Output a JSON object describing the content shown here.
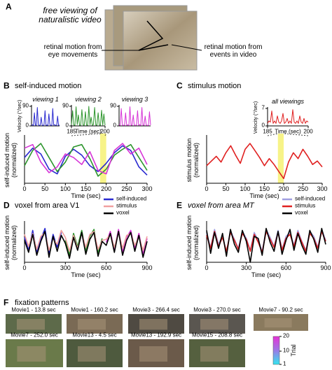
{
  "panels": {
    "A": {
      "letter": "A",
      "title": "free viewing of naturalistic video",
      "left_label": "retinal motion from eye movements",
      "right_label": "retinal motion from events in video"
    },
    "B": {
      "letter": "B",
      "title": "self-induced motion"
    },
    "C": {
      "letter": "C",
      "title": "stimulus motion"
    },
    "D": {
      "letter": "D",
      "title": "voxel from area V1"
    },
    "E": {
      "letter": "E",
      "title": "voxel from area MT"
    },
    "F": {
      "letter": "F",
      "title": "fixation patterns",
      "thumbnails": [
        "Movie1 - 13.8 sec",
        "Movie1 - 160.2 sec",
        "Movie3 - 266.4 sec",
        "Movie3 - 270.0 sec",
        "Movie7 - 90.2 sec",
        "Movie7 - 252.0 sec",
        "Movie13 - 4.5 sec",
        "Movie13 - 192.9 sec",
        "Movie15 - 208.8 sec"
      ],
      "colorbar": {
        "label": "Trial",
        "lim": [
          1,
          20
        ],
        "ticks": [
          1,
          10,
          20
        ]
      }
    }
  },
  "chart_data": [
    {
      "type": "line",
      "title": "viewing 1",
      "ylabel": "Velocity (°/sec)",
      "ylim": [
        0,
        90
      ],
      "yticks": [
        0,
        90
      ],
      "series": [
        {
          "color": "#2a2ad0",
          "values": [
            3,
            5,
            2,
            60,
            4,
            3,
            85,
            6,
            2,
            4,
            40,
            3,
            2,
            5,
            70,
            3,
            4,
            2,
            55,
            6,
            3,
            2,
            80,
            4,
            5,
            3,
            2,
            45,
            3,
            4
          ]
        }
      ]
    },
    {
      "type": "line",
      "title": "viewing 2",
      "xlabel": "Time (sec)",
      "xlim": [
        185,
        200
      ],
      "xticks": [
        185,
        200
      ],
      "ylim": [
        0,
        90
      ],
      "yticks": [
        0,
        90
      ],
      "series": [
        {
          "color": "#2e962e",
          "values": [
            5,
            70,
            4,
            3,
            88,
            6,
            50,
            3,
            4,
            75,
            5,
            2,
            65,
            4,
            3,
            90,
            5,
            40,
            3,
            6,
            85,
            4,
            3,
            60,
            5,
            2,
            72,
            4,
            55,
            3
          ]
        }
      ]
    },
    {
      "type": "line",
      "title": "viewing 3",
      "ylim": [
        0,
        90
      ],
      "yticks": [
        0,
        90
      ],
      "series": [
        {
          "color": "#d633d6",
          "values": [
            4,
            3,
            80,
            5,
            2,
            4,
            60,
            3,
            5,
            2,
            88,
            4,
            3,
            50,
            5,
            2,
            4,
            70,
            3,
            6,
            2,
            85,
            4,
            3,
            45,
            5,
            2,
            3,
            65,
            4
          ]
        }
      ]
    },
    {
      "type": "line",
      "ylabel": "self-induced motion (normalized)",
      "xlabel": "Time (sec)",
      "xlim": [
        0,
        300
      ],
      "xticks": [
        0,
        50,
        100,
        150,
        200,
        250,
        300
      ],
      "ylim": [
        -2,
        2
      ],
      "highlight": [
        185,
        200
      ],
      "x": [
        0,
        20,
        40,
        60,
        80,
        100,
        120,
        140,
        160,
        180,
        200,
        220,
        240,
        260,
        280,
        300
      ],
      "series": [
        {
          "color": "#2a2ad0",
          "values": [
            0.2,
            1.0,
            0.5,
            -0.8,
            -1.2,
            0.3,
            0.9,
            0.4,
            -0.5,
            -1.0,
            -0.3,
            0.6,
            1.2,
            0.8,
            -0.6,
            -1.3
          ]
        },
        {
          "color": "#2e962e",
          "values": [
            -0.5,
            0.8,
            1.4,
            0.2,
            -1.0,
            -0.2,
            1.1,
            1.3,
            0.1,
            -1.4,
            -0.8,
            0.4,
            0.9,
            1.3,
            0.2,
            -0.9
          ]
        },
        {
          "color": "#d633d6",
          "values": [
            1.0,
            1.3,
            -0.2,
            -1.1,
            -0.6,
            0.5,
            0.2,
            -0.4,
            0.7,
            -0.9,
            -1.2,
            0.8,
            1.4,
            0.5,
            1.0,
            -0.4
          ]
        }
      ]
    },
    {
      "type": "line",
      "title": "all viewings",
      "ylabel": "Velocity (°/sec)",
      "xlabel": "Time (sec)",
      "xlim": [
        185,
        200
      ],
      "xticks": [
        185,
        200
      ],
      "ylim": [
        0,
        7
      ],
      "yticks": [
        0,
        7
      ],
      "series": [
        {
          "color": "#e02020",
          "values": [
            1,
            2,
            1.5,
            6,
            1,
            2,
            1,
            4,
            1.5,
            1,
            2,
            5,
            1,
            1.5,
            3,
            1,
            2,
            1,
            6.5,
            1.5,
            1,
            2,
            1,
            4,
            1.5,
            1,
            3,
            1,
            2,
            1.5
          ]
        }
      ]
    },
    {
      "type": "line",
      "ylabel": "stimulus motion (normalized)",
      "xlabel": "Time (sec)",
      "xlim": [
        0,
        300
      ],
      "xticks": [
        0,
        50,
        100,
        150,
        200,
        250,
        300
      ],
      "ylim": [
        -2,
        2
      ],
      "highlight": [
        185,
        200
      ],
      "x": [
        0,
        12.5,
        25,
        37.5,
        50,
        62.5,
        75,
        87.5,
        100,
        112.5,
        125,
        137.5,
        150,
        162.5,
        175,
        187.5,
        200,
        212.5,
        225,
        237.5,
        250,
        262.5,
        275,
        287.5,
        300
      ],
      "series": [
        {
          "color": "#e02020",
          "values": [
            -0.5,
            -0.1,
            0.3,
            -0.2,
            0.6,
            1.2,
            0.4,
            -0.3,
            0.9,
            1.4,
            0.8,
            0.2,
            -0.5,
            0.1,
            -0.4,
            -1.0,
            -1.6,
            -0.2,
            0.6,
            0.1,
            0.9,
            0.3,
            -0.4,
            -0.1,
            -0.6
          ]
        }
      ]
    },
    {
      "type": "line",
      "ylabel": "self-induced motion (normalized)",
      "xlabel": "Time (sec)",
      "xlim": [
        0,
        900
      ],
      "xticks": [
        0,
        300,
        600,
        900
      ],
      "ylim": [
        -2,
        2
      ],
      "legend": "upper right",
      "x": [
        0,
        30,
        60,
        90,
        120,
        150,
        180,
        210,
        240,
        270,
        300,
        330,
        360,
        390,
        420,
        450,
        480,
        510,
        540,
        570,
        600,
        630,
        660,
        690,
        720,
        750,
        780,
        810,
        840,
        870,
        900
      ],
      "series": [
        {
          "name": "self-induced",
          "colors": [
            "#2a2ad0",
            "#2e962e",
            "#d633d6"
          ],
          "values": [
            0.5,
            -0.8,
            1.2,
            -1.0,
            0.3,
            1.4,
            -1.2,
            0.8,
            -0.5,
            1.0,
            0.2,
            -1.3,
            0.9,
            -0.4,
            1.2,
            -0.9,
            0.6,
            1.3,
            -1.1,
            0.4,
            0.0,
            1.1,
            -0.7,
            1.3,
            -1.0,
            0.5,
            1.2,
            -0.6,
            0.9,
            -1.2,
            0.4
          ]
        },
        {
          "name": "stimulus",
          "color": "#f0a0a0",
          "values": [
            0.8,
            -0.4,
            0.9,
            -0.7,
            0.6,
            1.0,
            -0.8,
            0.4,
            -0.2,
            1.2,
            0.5,
            -0.9,
            0.7,
            -0.6,
            0.9,
            -0.5,
            0.8,
            1.1,
            -0.7,
            0.2,
            0.3,
            0.8,
            -0.5,
            1.0,
            -0.6,
            0.7,
            0.9,
            -0.3,
            0.6,
            -0.8,
            0.6
          ]
        },
        {
          "name": "voxel",
          "color": "#000000",
          "values": [
            0.2,
            -1.0,
            0.8,
            -1.3,
            0.1,
            1.1,
            -1.5,
            0.6,
            -0.9,
            0.7,
            -0.1,
            -1.6,
            0.5,
            -0.8,
            1.0,
            -1.2,
            0.3,
            1.0,
            -1.4,
            0.1,
            -0.3,
            0.9,
            -1.0,
            1.1,
            -1.3,
            0.2,
            1.0,
            -0.9,
            0.7,
            -1.5,
            0.1
          ]
        }
      ]
    },
    {
      "type": "line",
      "ylabel": "self-induced motion (normalized)",
      "xlabel": "Time (sec)",
      "xlim": [
        0,
        900
      ],
      "xticks": [
        0,
        300,
        600,
        900
      ],
      "ylim": [
        -2,
        2
      ],
      "legend": "upper right",
      "x": [
        0,
        30,
        60,
        90,
        120,
        150,
        180,
        210,
        240,
        270,
        300,
        330,
        360,
        390,
        420,
        450,
        480,
        510,
        540,
        570,
        600,
        630,
        660,
        690,
        720,
        750,
        780,
        810,
        840,
        870,
        900
      ],
      "series": [
        {
          "name": "self-induced",
          "color": "#a09ee0",
          "values": [
            0.9,
            -0.5,
            1.3,
            -0.2,
            0.7,
            -1.0,
            1.2,
            0.3,
            -0.6,
            1.1,
            0.4,
            -0.8,
            1.0,
            0.2,
            -0.9,
            1.3,
            0.5,
            -0.4,
            1.2,
            -0.7,
            0.6,
            1.0,
            -0.3,
            1.2,
            0.1,
            -0.8,
            1.1,
            0.6,
            -0.5,
            1.3,
            0.2
          ]
        },
        {
          "name": "stimulus",
          "color": "#e02020",
          "values": [
            0.7,
            -0.6,
            1.1,
            -0.4,
            0.5,
            -0.9,
            1.0,
            0.2,
            -0.7,
            0.9,
            0.3,
            -0.9,
            0.8,
            0.0,
            -1.0,
            1.1,
            0.3,
            -0.5,
            1.0,
            -0.8,
            0.4,
            0.8,
            -0.4,
            1.0,
            0.0,
            -0.9,
            0.9,
            0.4,
            -0.6,
            1.1,
            0.1
          ]
        },
        {
          "name": "voxel",
          "color": "#000000",
          "values": [
            1.2,
            -1.1,
            1.0,
            -0.6,
            0.9,
            -1.4,
            1.3,
            -0.2,
            -1.0,
            1.2,
            0.1,
            -2.0,
            0.6,
            0.4,
            -1.3,
            1.4,
            0.0,
            -0.9,
            1.1,
            -1.2,
            0.2,
            1.3,
            -0.8,
            0.9,
            -0.3,
            -1.2,
            1.2,
            0.3,
            -1.0,
            1.4,
            -0.2
          ]
        }
      ]
    }
  ]
}
